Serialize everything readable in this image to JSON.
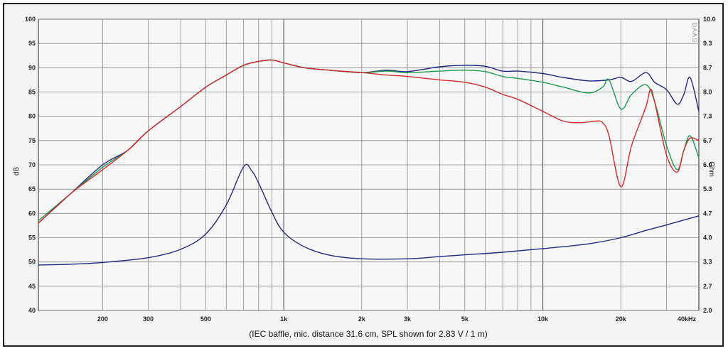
{
  "chart_data": {
    "type": "line",
    "title": "",
    "caption": "(IEC baffle, mic. distance 31.6 cm, SPL shown for 2.83 V / 1 m)",
    "xscale": "log",
    "xlim": [
      113,
      40000
    ],
    "x_ticks": [
      {
        "v": 200,
        "label": "200"
      },
      {
        "v": 300,
        "label": "300"
      },
      {
        "v": 500,
        "label": "500"
      },
      {
        "v": 1000,
        "label": "1k"
      },
      {
        "v": 2000,
        "label": "2k"
      },
      {
        "v": 3000,
        "label": "3k"
      },
      {
        "v": 5000,
        "label": "5k"
      },
      {
        "v": 10000,
        "label": "10k"
      },
      {
        "v": 20000,
        "label": "20k"
      },
      {
        "v": 40000,
        "label": "40kHz"
      }
    ],
    "y_left": {
      "label": "dB",
      "lim": [
        40,
        100
      ],
      "ticks": [
        "40",
        "45",
        "50",
        "55",
        "60",
        "65",
        "70",
        "75",
        "80",
        "85",
        "90",
        "95",
        "100"
      ]
    },
    "y_right": {
      "label": "Ohm",
      "lim": [
        2.0,
        10.0
      ],
      "ticks": [
        "2.0",
        "2.7",
        "3.3",
        "4.0",
        "4.7",
        "5.3",
        "6.0",
        "6.7",
        "7.3",
        "8.0",
        "8.7",
        "9.3",
        "10.0"
      ]
    },
    "watermark": "DAAS",
    "grid": true,
    "legend": "none",
    "series": [
      {
        "axis": "left",
        "color": "#1f2a80",
        "points": [
          [
            113,
            58
          ],
          [
            150,
            64
          ],
          [
            200,
            70
          ],
          [
            250,
            73
          ],
          [
            300,
            77
          ],
          [
            400,
            82
          ],
          [
            500,
            86
          ],
          [
            600,
            88.5
          ],
          [
            700,
            90.5
          ],
          [
            800,
            91.3
          ],
          [
            900,
            91.6
          ],
          [
            1000,
            91
          ],
          [
            1200,
            90
          ],
          [
            1500,
            89.5
          ],
          [
            2000,
            89
          ],
          [
            2500,
            89.5
          ],
          [
            3000,
            89.2
          ],
          [
            4000,
            90.2
          ],
          [
            5000,
            90.5
          ],
          [
            6000,
            90.3
          ],
          [
            7000,
            89.3
          ],
          [
            8000,
            89.3
          ],
          [
            10000,
            88.8
          ],
          [
            12000,
            88
          ],
          [
            15000,
            87.3
          ],
          [
            18000,
            87.5
          ],
          [
            20000,
            88
          ],
          [
            22000,
            87.2
          ],
          [
            25000,
            89
          ],
          [
            27000,
            87
          ],
          [
            30000,
            85.5
          ],
          [
            33000,
            82.5
          ],
          [
            35000,
            84.5
          ],
          [
            37000,
            88
          ],
          [
            40000,
            81
          ]
        ]
      },
      {
        "axis": "left",
        "color": "#1a9a4a",
        "points": [
          [
            113,
            58.5
          ],
          [
            150,
            64
          ],
          [
            200,
            69.5
          ],
          [
            250,
            73
          ],
          [
            300,
            77
          ],
          [
            400,
            82
          ],
          [
            500,
            86
          ],
          [
            600,
            88.5
          ],
          [
            700,
            90.5
          ],
          [
            800,
            91.3
          ],
          [
            900,
            91.6
          ],
          [
            1000,
            91
          ],
          [
            1200,
            90
          ],
          [
            1500,
            89.5
          ],
          [
            2000,
            89
          ],
          [
            2500,
            89.3
          ],
          [
            3000,
            89
          ],
          [
            4000,
            89.3
          ],
          [
            5000,
            89.5
          ],
          [
            6000,
            89.2
          ],
          [
            7000,
            88.2
          ],
          [
            8000,
            87.8
          ],
          [
            10000,
            87
          ],
          [
            12000,
            86
          ],
          [
            15000,
            84.8
          ],
          [
            17000,
            86
          ],
          [
            18000,
            87.5
          ],
          [
            20000,
            81.5
          ],
          [
            22000,
            84.5
          ],
          [
            25000,
            86.5
          ],
          [
            27000,
            83
          ],
          [
            30000,
            74
          ],
          [
            33000,
            69
          ],
          [
            35000,
            73
          ],
          [
            37000,
            76
          ],
          [
            40000,
            71.5
          ]
        ]
      },
      {
        "axis": "left",
        "color": "#d42a2a",
        "points": [
          [
            113,
            58
          ],
          [
            150,
            64
          ],
          [
            200,
            69
          ],
          [
            250,
            73
          ],
          [
            300,
            77
          ],
          [
            400,
            82
          ],
          [
            500,
            86
          ],
          [
            600,
            88.5
          ],
          [
            700,
            90.5
          ],
          [
            800,
            91.3
          ],
          [
            900,
            91.6
          ],
          [
            1000,
            91
          ],
          [
            1200,
            90
          ],
          [
            1500,
            89.5
          ],
          [
            2000,
            89
          ],
          [
            2500,
            88.5
          ],
          [
            3000,
            88.2
          ],
          [
            4000,
            87.5
          ],
          [
            5000,
            87
          ],
          [
            6000,
            86
          ],
          [
            7000,
            84.5
          ],
          [
            8000,
            83.5
          ],
          [
            10000,
            81
          ],
          [
            12000,
            79
          ],
          [
            14000,
            78.7
          ],
          [
            16000,
            79
          ],
          [
            17000,
            78.7
          ],
          [
            18000,
            76
          ],
          [
            20000,
            65.5
          ],
          [
            22000,
            74
          ],
          [
            25000,
            82
          ],
          [
            26000,
            85.5
          ],
          [
            27000,
            83
          ],
          [
            30000,
            72
          ],
          [
            33000,
            68.5
          ],
          [
            35000,
            73
          ],
          [
            37000,
            75.5
          ],
          [
            40000,
            75
          ]
        ]
      },
      {
        "axis": "right",
        "color": "#1f2a80",
        "points": [
          [
            113,
            3.25
          ],
          [
            150,
            3.27
          ],
          [
            200,
            3.32
          ],
          [
            300,
            3.45
          ],
          [
            400,
            3.68
          ],
          [
            500,
            4.1
          ],
          [
            600,
            4.9
          ],
          [
            700,
            5.95
          ],
          [
            750,
            5.85
          ],
          [
            800,
            5.5
          ],
          [
            900,
            4.7
          ],
          [
            1000,
            4.15
          ],
          [
            1200,
            3.75
          ],
          [
            1500,
            3.52
          ],
          [
            2000,
            3.42
          ],
          [
            3000,
            3.42
          ],
          [
            4000,
            3.48
          ],
          [
            5000,
            3.53
          ],
          [
            7000,
            3.6
          ],
          [
            10000,
            3.7
          ],
          [
            15000,
            3.83
          ],
          [
            20000,
            4.0
          ],
          [
            25000,
            4.2
          ],
          [
            30000,
            4.35
          ],
          [
            40000,
            4.6
          ]
        ]
      }
    ]
  }
}
